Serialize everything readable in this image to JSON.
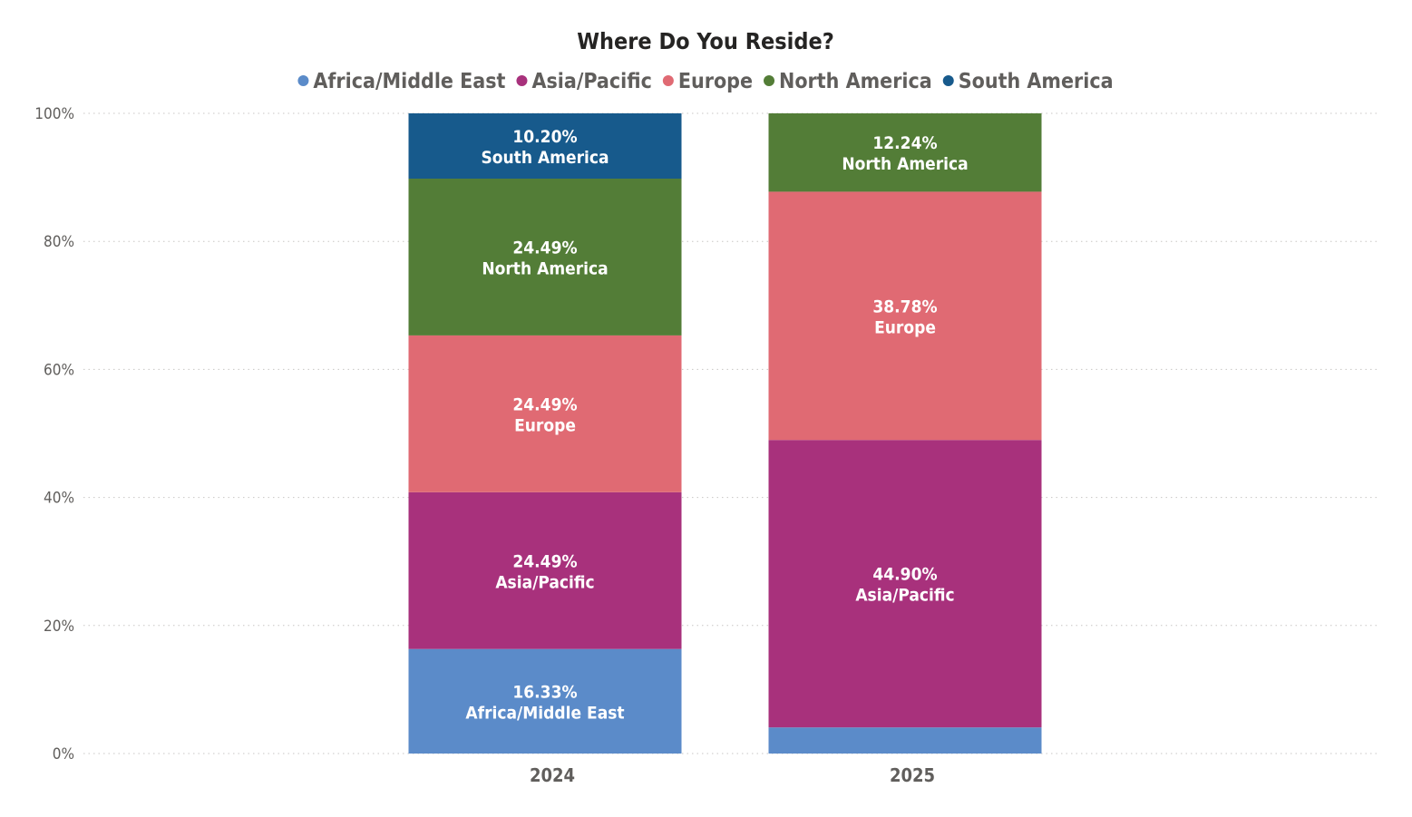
{
  "chart_data": {
    "type": "bar",
    "stacked": "percent",
    "title": "Where Do You Reside?",
    "xlabel": "",
    "ylabel": "",
    "ylim": [
      0,
      100
    ],
    "y_ticks": [
      {
        "value": 0,
        "label": "0%"
      },
      {
        "value": 20,
        "label": "20%"
      },
      {
        "value": 40,
        "label": "40%"
      },
      {
        "value": 60,
        "label": "60%"
      },
      {
        "value": 80,
        "label": "80%"
      },
      {
        "value": 100,
        "label": "100%"
      }
    ],
    "grid": true,
    "legend_position": "top-center",
    "categories": [
      "2024",
      "2025"
    ],
    "series": [
      {
        "name": "Africa/Middle East",
        "color": "#5b8bc9",
        "values": [
          16.33,
          4.08
        ],
        "labels": [
          "16.33%",
          ""
        ]
      },
      {
        "name": "Asia/Pacific",
        "color": "#a8317c",
        "values": [
          24.49,
          44.9
        ],
        "labels": [
          "24.49%",
          "44.90%"
        ]
      },
      {
        "name": "Europe",
        "color": "#e06a73",
        "values": [
          24.49,
          38.78
        ],
        "labels": [
          "24.49%",
          "38.78%"
        ]
      },
      {
        "name": "North America",
        "color": "#537d37",
        "values": [
          24.49,
          12.24
        ],
        "labels": [
          "24.49%",
          "12.24%"
        ]
      },
      {
        "name": "South America",
        "color": "#175a8c",
        "values": [
          10.2,
          0
        ],
        "labels": [
          "10.20%",
          ""
        ]
      }
    ]
  }
}
